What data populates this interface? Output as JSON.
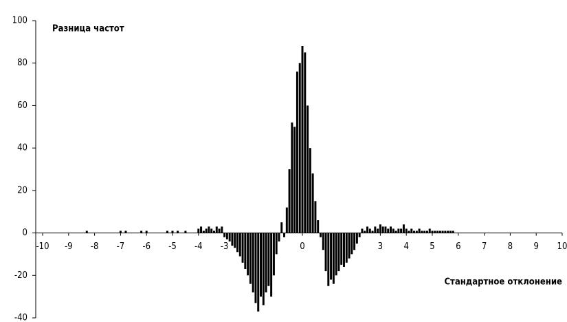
{
  "chart_data": {
    "type": "bar",
    "y_label": "Разница частот",
    "x_label": "Стандартное отклонение",
    "color": "#000000",
    "x": [
      -8.3,
      -7.0,
      -6.8,
      -6.2,
      -6.0,
      -5.2,
      -5.0,
      -4.8,
      -4.5,
      -4.0,
      -3.9,
      -3.8,
      -3.7,
      -3.6,
      -3.5,
      -3.4,
      -3.3,
      -3.2,
      -3.1,
      -3.0,
      -2.9,
      -2.8,
      -2.7,
      -2.6,
      -2.5,
      -2.4,
      -2.3,
      -2.2,
      -2.1,
      -2.0,
      -1.9,
      -1.8,
      -1.7,
      -1.6,
      -1.5,
      -1.4,
      -1.3,
      -1.2,
      -1.1,
      -1.0,
      -0.9,
      -0.8,
      -0.7,
      -0.6,
      -0.5,
      -0.4,
      -0.3,
      -0.2,
      -0.1,
      0.0,
      0.1,
      0.2,
      0.3,
      0.4,
      0.5,
      0.6,
      0.7,
      0.8,
      0.9,
      1.0,
      1.1,
      1.2,
      1.3,
      1.4,
      1.5,
      1.6,
      1.7,
      1.8,
      1.9,
      2.0,
      2.1,
      2.2,
      2.3,
      2.4,
      2.5,
      2.6,
      2.7,
      2.8,
      2.9,
      3.0,
      3.1,
      3.2,
      3.3,
      3.4,
      3.5,
      3.6,
      3.7,
      3.8,
      3.9,
      4.0,
      4.1,
      4.2,
      4.3,
      4.4,
      4.5,
      4.6,
      4.7,
      4.8,
      4.9,
      5.0,
      5.1,
      5.2,
      5.3,
      5.4,
      5.5,
      5.6,
      5.7,
      5.8
    ],
    "values": [
      1,
      1,
      1,
      1,
      1,
      1,
      1,
      1,
      1,
      2,
      3,
      1,
      2,
      3,
      2,
      1,
      3,
      2,
      3,
      -2,
      -3,
      -4,
      -6,
      -7,
      -9,
      -11,
      -14,
      -17,
      -20,
      -24,
      -28,
      -33,
      -37,
      -30,
      -34,
      -28,
      -25,
      -30,
      -20,
      -10,
      -4,
      5,
      -2,
      12,
      30,
      52,
      50,
      76,
      80,
      88,
      85,
      60,
      40,
      28,
      15,
      6,
      -2,
      -8,
      -18,
      -25,
      -22,
      -24,
      -20,
      -18,
      -15,
      -16,
      -14,
      -12,
      -10,
      -8,
      -5,
      -2,
      2,
      1,
      3,
      2,
      1,
      3,
      2,
      4,
      3,
      3,
      2,
      3,
      2,
      1,
      2,
      2,
      4,
      2,
      1,
      2,
      1,
      1,
      2,
      1,
      1,
      1,
      2,
      1,
      1,
      1,
      1,
      1,
      1,
      1,
      1,
      1
    ],
    "bar_width": 0.1,
    "xlim": [
      -10,
      10
    ],
    "xticks": [
      -10,
      -9,
      -8,
      -7,
      -6,
      -5,
      -4,
      -3,
      0,
      3,
      4,
      5,
      6,
      7,
      8,
      9,
      10
    ],
    "ylim": [
      -40,
      100
    ],
    "yticks": [
      100,
      80,
      60,
      40,
      20,
      0,
      -20,
      -40
    ]
  }
}
